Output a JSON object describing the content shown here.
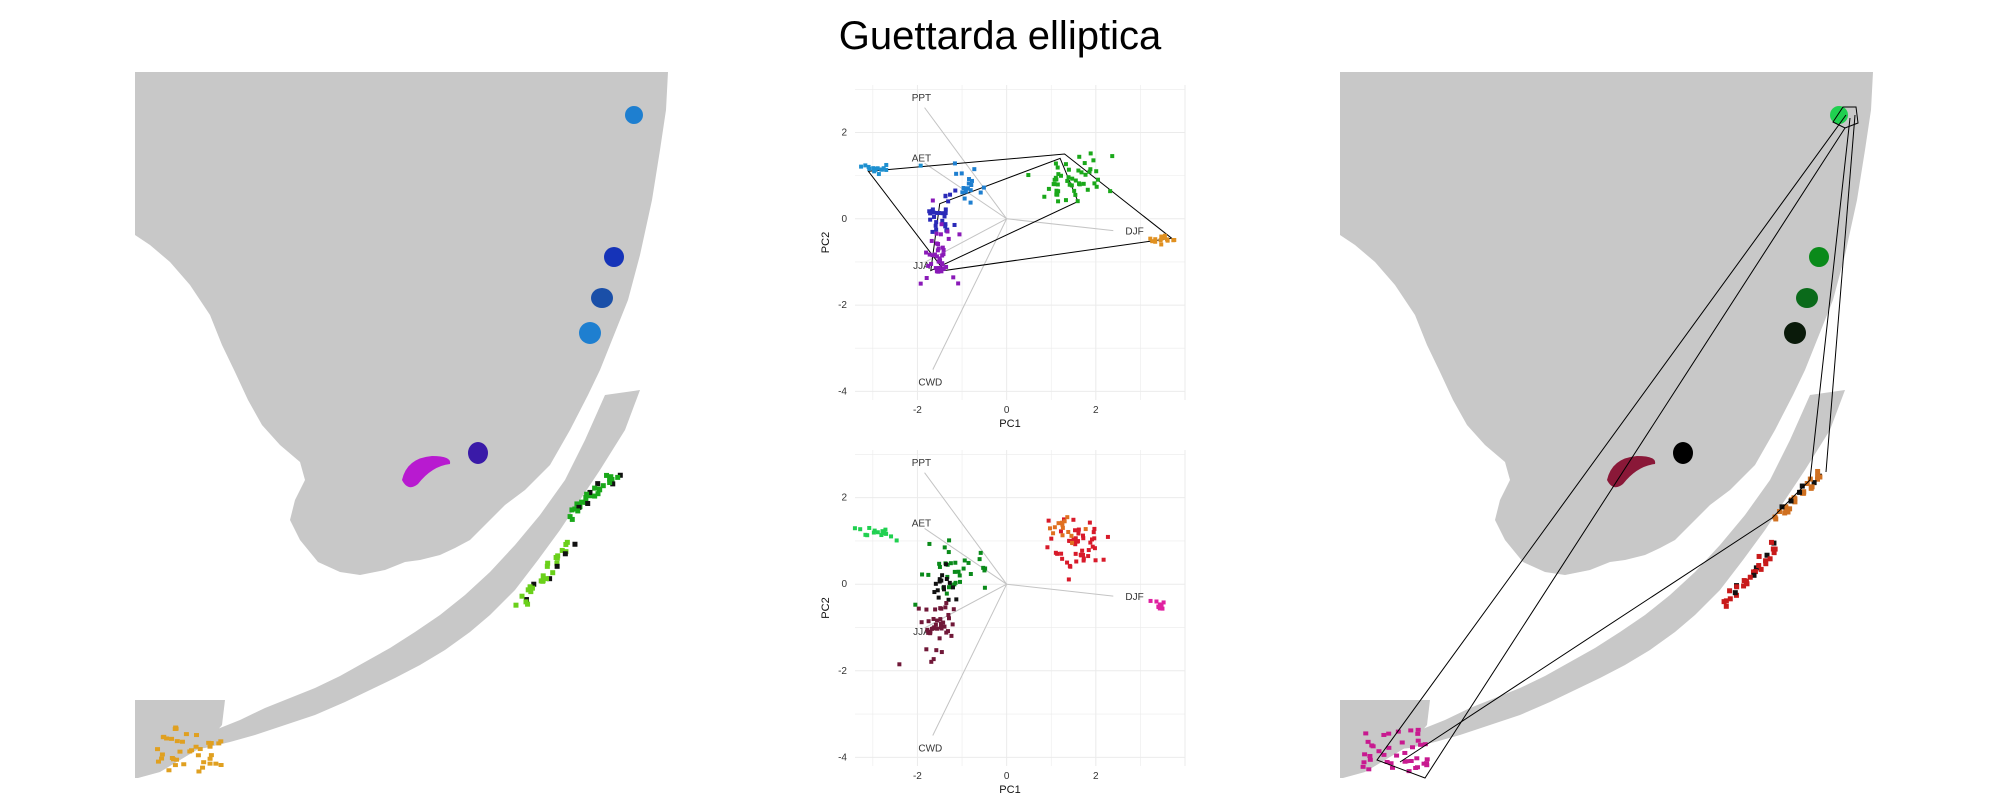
{
  "title": "Guettarda elliptica",
  "colors": {
    "land": "#c8c8c8",
    "background": "#ffffff",
    "grid": "#ebebeb",
    "arrow": "#c4c4c4"
  },
  "chart_data": [
    {
      "type": "map",
      "panel": "left-map",
      "clusters": [
        {
          "region": "northeast coast",
          "color": "#1e7fd0"
        },
        {
          "region": "east coast",
          "color": "#1533b8"
        },
        {
          "region": "east coast",
          "color": "#1a4fa8"
        },
        {
          "region": "east coast",
          "color": "#1e7fd0"
        },
        {
          "region": "interior west",
          "color": "#b81ad0"
        },
        {
          "region": "interior",
          "color": "#3a1aa8"
        },
        {
          "region": "southeast coast",
          "color": "#1aa81a"
        },
        {
          "region": "southern keys",
          "color": "#6ad01a"
        },
        {
          "region": "southwest",
          "color": "#e0a020"
        }
      ]
    },
    {
      "type": "scatter",
      "panel": "biplot-top",
      "xlabel": "PC1",
      "ylabel": "PC2",
      "xticks": [
        -2,
        0,
        2
      ],
      "yticks": [
        2,
        0,
        -2,
        -4
      ],
      "xlim": [
        -3.4,
        4.0
      ],
      "ylim": [
        -4.2,
        3.1
      ],
      "grid": true,
      "loadings": [
        {
          "name": "PPT",
          "x": -2.0,
          "y": 2.8
        },
        {
          "name": "AET",
          "x": -2.0,
          "y": 1.4
        },
        {
          "name": "DJF",
          "x": 2.6,
          "y": -0.3
        },
        {
          "name": "JJA",
          "x": -2.0,
          "y": -1.1
        },
        {
          "name": "CWD",
          "x": -1.8,
          "y": -3.8
        }
      ],
      "groups": [
        {
          "cx": -2.9,
          "cy": 1.2,
          "sx": 0.25,
          "sy": 0.08,
          "n": 16,
          "color": "#1e90d0"
        },
        {
          "cx": -0.85,
          "cy": 0.7,
          "sx": 0.15,
          "sy": 0.2,
          "n": 18,
          "color": "#1e7fd0"
        },
        {
          "cx": -1.5,
          "cy": 0.1,
          "sx": 0.2,
          "sy": 0.25,
          "n": 28,
          "color": "#2a2ab8"
        },
        {
          "cx": -1.55,
          "cy": -0.9,
          "sx": 0.2,
          "sy": 0.4,
          "n": 40,
          "color": "#8a1ab8"
        },
        {
          "cx": 1.5,
          "cy": 0.9,
          "sx": 0.45,
          "sy": 0.3,
          "n": 50,
          "color": "#1aa81a"
        },
        {
          "cx": 3.5,
          "cy": -0.5,
          "sx": 0.18,
          "sy": 0.06,
          "n": 14,
          "color": "#e09020"
        }
      ],
      "hulls": [
        [
          [
            -3.1,
            1.1
          ],
          [
            1.3,
            1.5
          ],
          [
            3.7,
            -0.45
          ],
          [
            -1.4,
            -1.2
          ]
        ],
        [
          [
            -1.5,
            0.35
          ],
          [
            1.2,
            1.4
          ],
          [
            1.6,
            0.4
          ],
          [
            -1.7,
            -1.2
          ]
        ]
      ]
    },
    {
      "type": "scatter",
      "panel": "biplot-bottom",
      "xlabel": "PC1",
      "ylabel": "PC2",
      "xticks": [
        -2,
        0,
        2
      ],
      "yticks": [
        2,
        0,
        -2,
        -4
      ],
      "xlim": [
        -3.4,
        4.0
      ],
      "ylim": [
        -4.2,
        3.1
      ],
      "grid": true,
      "loadings": [
        {
          "name": "PPT",
          "x": -2.0,
          "y": 2.8
        },
        {
          "name": "AET",
          "x": -2.0,
          "y": 1.4
        },
        {
          "name": "DJF",
          "x": 2.6,
          "y": -0.3
        },
        {
          "name": "JJA",
          "x": -2.0,
          "y": -1.1
        },
        {
          "name": "CWD",
          "x": -1.8,
          "y": -3.8
        }
      ],
      "groups": [
        {
          "cx": -2.9,
          "cy": 1.2,
          "sx": 0.25,
          "sy": 0.08,
          "n": 16,
          "color": "#20d050"
        },
        {
          "cx": -1.1,
          "cy": 0.4,
          "sx": 0.35,
          "sy": 0.25,
          "n": 34,
          "color": "#0a8a1a"
        },
        {
          "cx": -1.4,
          "cy": 0.0,
          "sx": 0.15,
          "sy": 0.15,
          "n": 16,
          "color": "#111111"
        },
        {
          "cx": -1.55,
          "cy": -1.0,
          "sx": 0.2,
          "sy": 0.35,
          "n": 40,
          "color": "#701838"
        },
        {
          "cx": 1.6,
          "cy": 0.9,
          "sx": 0.35,
          "sy": 0.3,
          "n": 50,
          "color": "#d81a2a"
        },
        {
          "cx": 1.3,
          "cy": 1.3,
          "sx": 0.15,
          "sy": 0.15,
          "n": 14,
          "color": "#e07020"
        },
        {
          "cx": 3.45,
          "cy": -0.5,
          "sx": 0.12,
          "sy": 0.05,
          "n": 10,
          "color": "#e020a0"
        }
      ]
    },
    {
      "type": "map",
      "panel": "right-map",
      "clusters": [
        {
          "region": "northeast coast",
          "color": "#20d050"
        },
        {
          "region": "east coast",
          "color": "#0a8a1a"
        },
        {
          "region": "east coast",
          "color": "#0a6a1a"
        },
        {
          "region": "east coast",
          "color": "#0a1a0a"
        },
        {
          "region": "interior west",
          "color": "#8a1838"
        },
        {
          "region": "interior",
          "color": "#000000"
        },
        {
          "region": "southeast coast",
          "color": "#d07020"
        },
        {
          "region": "southern keys",
          "color": "#c81a1a"
        },
        {
          "region": "southwest",
          "color": "#c81a90"
        }
      ]
    }
  ]
}
